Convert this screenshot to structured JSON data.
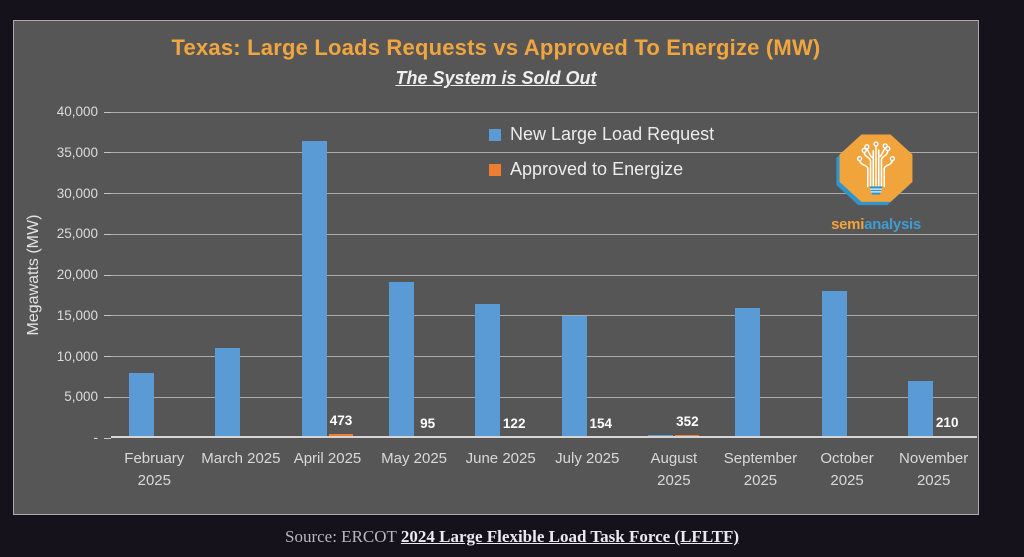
{
  "header": {
    "title": "Texas: Large Loads Requests vs Approved To Energize (MW)",
    "subtitle": "The System is Sold Out"
  },
  "footer": {
    "source_prefix": "Source: ERCOT ",
    "source_link": "2024 Large Flexible Load Task Force (LFLTF)"
  },
  "logo": {
    "word_part1": "semi",
    "word_part2": "analysis"
  },
  "colors": {
    "background": "#15121B",
    "panel": "#565656",
    "panel_border": "#ACACAC",
    "title": "#F1A53F",
    "gridline": "#ABABAB",
    "baseline": "#D6D6D6",
    "axis_text": "#DCDCDC",
    "legend_text": "#ECECEC",
    "bar_blue": "#5B9BD5",
    "bar_orange": "#ED7D31",
    "value_label_text": "#FFFFFF",
    "logo_orange": "#F2A43C",
    "logo_blue": "#2E96CE"
  },
  "chart_data": {
    "type": "bar",
    "title": "Texas: Large Loads Requests vs Approved To Energize (MW)",
    "subtitle": "The System is Sold Out",
    "ylabel": "Megawatts (MW)",
    "xlabel": "",
    "ylim": [
      0,
      40000
    ],
    "grid": true,
    "legend_position": "top-center-inside",
    "categories": [
      "February 2025",
      "March 2025",
      "April 2025",
      "May 2025",
      "June 2025",
      "July 2025",
      "August 2025",
      "September 2025",
      "October 2025",
      "November 2025"
    ],
    "series": [
      {
        "name": "New Large Load Request",
        "color": "#5B9BD5",
        "values": [
          8000,
          11000,
          36500,
          19200,
          16400,
          15000,
          400,
          15900,
          18000,
          7000
        ],
        "data_labels_shown": false
      },
      {
        "name": "Approved to Energize",
        "color": "#ED7D31",
        "values": [
          0,
          0,
          473,
          95,
          122,
          154,
          352,
          0,
          0,
          210
        ],
        "data_labels_shown": true,
        "data_labels": [
          null,
          null,
          "473",
          "95",
          "122",
          "154",
          "352",
          null,
          null,
          "210"
        ]
      }
    ],
    "y_ticks": [
      {
        "value": 0,
        "label": "-"
      },
      {
        "value": 5000,
        "label": "5,000"
      },
      {
        "value": 10000,
        "label": "10,000"
      },
      {
        "value": 15000,
        "label": "15,000"
      },
      {
        "value": 20000,
        "label": "20,000"
      },
      {
        "value": 25000,
        "label": "25,000"
      },
      {
        "value": 30000,
        "label": "30,000"
      },
      {
        "value": 35000,
        "label": "35,000"
      },
      {
        "value": 40000,
        "label": "40,000"
      }
    ]
  }
}
